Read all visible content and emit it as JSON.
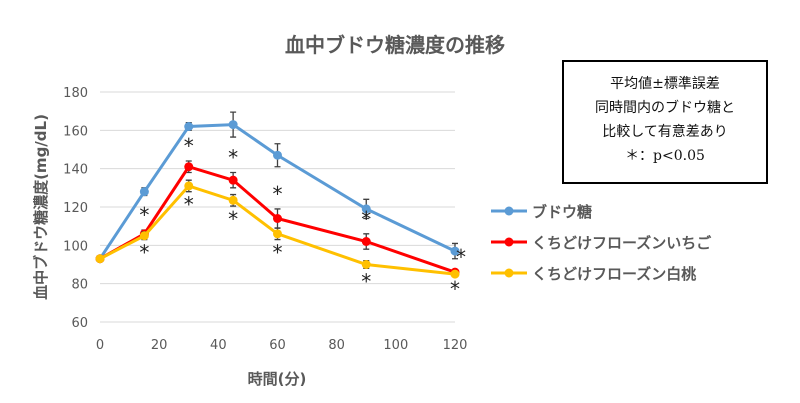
{
  "chart_data": {
    "type": "line",
    "title": "血中ブドウ糖濃度の推移",
    "xlabel": "時間(分)",
    "ylabel": "血中ブドウ糖濃度(mg/dL)",
    "xlim": [
      0,
      120
    ],
    "ylim": [
      60,
      180
    ],
    "xticks": [
      0,
      20,
      40,
      60,
      80,
      100,
      120
    ],
    "yticks": [
      60,
      80,
      100,
      120,
      140,
      160,
      180
    ],
    "grid": "horizontal",
    "legend_position": "right",
    "x": [
      0,
      15,
      30,
      45,
      60,
      90,
      120
    ],
    "series": [
      {
        "name": "ブドウ糖",
        "color": "#5b9bd5",
        "values": [
          93,
          128,
          162,
          163,
          147,
          119,
          97
        ],
        "errors": [
          1,
          2,
          2,
          6.5,
          6,
          5,
          4
        ],
        "significant": [
          false,
          false,
          false,
          false,
          false,
          false,
          false
        ]
      },
      {
        "name": "くちどけフローズンいちご",
        "color": "#ff0000",
        "values": [
          93,
          106,
          141,
          134,
          114,
          102,
          86
        ],
        "errors": [
          1,
          2,
          3,
          4,
          5,
          4,
          1
        ],
        "significant": [
          false,
          true,
          true,
          true,
          true,
          true,
          true
        ]
      },
      {
        "name": "くちどけフローズン白桃",
        "color": "#ffc000",
        "values": [
          93,
          105,
          131,
          123.5,
          106,
          90,
          85
        ],
        "errors": [
          1,
          2,
          3,
          3,
          3,
          2,
          1
        ],
        "significant": [
          false,
          true,
          true,
          true,
          true,
          true,
          true
        ]
      }
    ],
    "significance_mark": "*",
    "annotation": [
      "平均値±標準誤差",
      "同時間内のブドウ糖と",
      "比較して有意差あり",
      "＊：p<0.05"
    ]
  }
}
